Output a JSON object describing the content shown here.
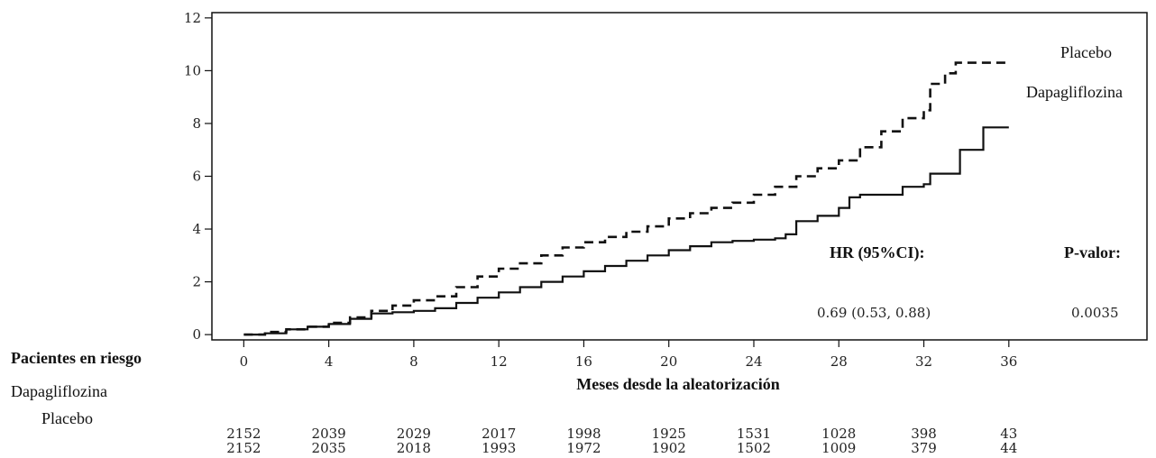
{
  "chart_data": {
    "type": "line",
    "title": "",
    "xlabel": "Meses desde la aleatorización",
    "ylabel": "",
    "xlim": [
      -1.5,
      42.5
    ],
    "ylim": [
      -0.2,
      12.2
    ],
    "x_ticks": [
      0,
      4,
      8,
      12,
      16,
      20,
      24,
      28,
      32,
      36
    ],
    "y_ticks": [
      0,
      2,
      4,
      6,
      8,
      10,
      12
    ],
    "grid": false,
    "legend": [
      "Placebo",
      "Dapagliflozina"
    ],
    "series": [
      {
        "name": "Placebo",
        "style": "dashed",
        "color": "#111111",
        "points": [
          [
            0,
            0
          ],
          [
            1,
            0.1
          ],
          [
            2,
            0.2
          ],
          [
            3,
            0.3
          ],
          [
            4,
            0.45
          ],
          [
            5,
            0.65
          ],
          [
            6,
            0.9
          ],
          [
            7,
            1.1
          ],
          [
            8,
            1.3
          ],
          [
            9,
            1.45
          ],
          [
            10,
            1.8
          ],
          [
            11,
            2.2
          ],
          [
            12,
            2.5
          ],
          [
            13,
            2.7
          ],
          [
            14,
            3.0
          ],
          [
            15,
            3.3
          ],
          [
            16,
            3.5
          ],
          [
            17,
            3.7
          ],
          [
            18,
            3.9
          ],
          [
            19,
            4.1
          ],
          [
            20,
            4.4
          ],
          [
            21,
            4.6
          ],
          [
            22,
            4.8
          ],
          [
            23,
            5.0
          ],
          [
            24,
            5.3
          ],
          [
            25,
            5.6
          ],
          [
            26,
            6.0
          ],
          [
            27,
            6.3
          ],
          [
            28,
            6.6
          ],
          [
            29,
            7.1
          ],
          [
            30,
            7.7
          ],
          [
            31,
            8.2
          ],
          [
            32,
            8.5
          ],
          [
            32.3,
            9.5
          ],
          [
            33,
            9.9
          ],
          [
            33.5,
            10.3
          ],
          [
            36,
            10.35
          ]
        ]
      },
      {
        "name": "Dapagliflozina",
        "style": "solid",
        "color": "#111111",
        "points": [
          [
            0,
            0
          ],
          [
            1,
            0.05
          ],
          [
            2,
            0.2
          ],
          [
            3,
            0.3
          ],
          [
            4,
            0.4
          ],
          [
            5,
            0.6
          ],
          [
            6,
            0.8
          ],
          [
            7,
            0.85
          ],
          [
            8,
            0.9
          ],
          [
            9,
            1.0
          ],
          [
            10,
            1.2
          ],
          [
            11,
            1.4
          ],
          [
            12,
            1.6
          ],
          [
            13,
            1.8
          ],
          [
            14,
            2.0
          ],
          [
            15,
            2.2
          ],
          [
            16,
            2.4
          ],
          [
            17,
            2.6
          ],
          [
            18,
            2.8
          ],
          [
            19,
            3.0
          ],
          [
            20,
            3.2
          ],
          [
            21,
            3.35
          ],
          [
            22,
            3.5
          ],
          [
            23,
            3.55
          ],
          [
            24,
            3.6
          ],
          [
            25,
            3.65
          ],
          [
            25.5,
            3.8
          ],
          [
            26,
            4.3
          ],
          [
            27,
            4.5
          ],
          [
            28,
            4.8
          ],
          [
            28.5,
            5.2
          ],
          [
            29,
            5.3
          ],
          [
            30.5,
            5.3
          ],
          [
            31,
            5.6
          ],
          [
            32,
            5.7
          ],
          [
            32.3,
            6.1
          ],
          [
            33.5,
            6.1
          ],
          [
            33.7,
            7.0
          ],
          [
            34.7,
            7.0
          ],
          [
            34.8,
            7.85
          ],
          [
            36,
            7.85
          ]
        ]
      }
    ],
    "annotations": {
      "hr_label": "HR (95%CI):",
      "p_label": "P-valor:",
      "hr_value": "0.69 (0.53, 0.88)",
      "p_value": "0.0035"
    },
    "risk_table": {
      "title": "Pacientes en riesgo",
      "rows": [
        {
          "label": "Dapagliflozina",
          "values": [
            "2152",
            "2039",
            "2029",
            "2017",
            "1998",
            "1925",
            "1531",
            "1028",
            "398",
            "43"
          ]
        },
        {
          "label": "Placebo",
          "values": [
            "2152",
            "2035",
            "2018",
            "1993",
            "1972",
            "1902",
            "1502",
            "1009",
            "379",
            "44"
          ]
        }
      ]
    }
  }
}
